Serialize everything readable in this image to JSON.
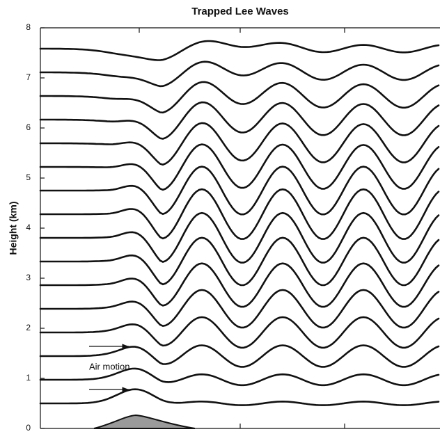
{
  "title": "Trapped Lee Waves",
  "y_axis": {
    "label": "Height (km)",
    "ylim": [
      0,
      8
    ],
    "yticks": [
      0,
      1,
      2,
      3,
      4,
      5,
      6,
      7,
      8
    ]
  },
  "annotation": "Air motion"
}
